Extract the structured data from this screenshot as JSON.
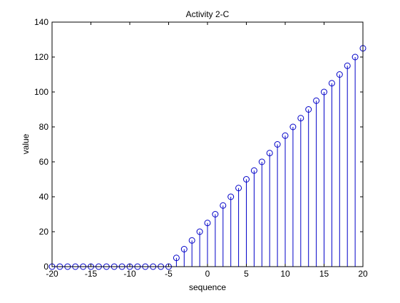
{
  "chart_data": {
    "type": "stem",
    "title": "Activity 2-C",
    "xlabel": "sequence",
    "ylabel": "value",
    "xlim": [
      -20,
      20
    ],
    "ylim": [
      0,
      140
    ],
    "xticks": [
      -20,
      -15,
      -10,
      -5,
      0,
      5,
      10,
      15,
      20
    ],
    "yticks": [
      0,
      20,
      40,
      60,
      80,
      100,
      120,
      140
    ],
    "grid": false,
    "marker": "circle",
    "colors": {
      "series": "#0000c8",
      "axes": "#000000",
      "background": "#ffffff"
    },
    "x": [
      -20,
      -19,
      -18,
      -17,
      -16,
      -15,
      -14,
      -13,
      -12,
      -11,
      -10,
      -9,
      -8,
      -7,
      -6,
      -5,
      -4,
      -3,
      -2,
      -1,
      0,
      1,
      2,
      3,
      4,
      5,
      6,
      7,
      8,
      9,
      10,
      11,
      12,
      13,
      14,
      15,
      16,
      17,
      18,
      19,
      20
    ],
    "values": [
      0,
      0,
      0,
      0,
      0,
      0,
      0,
      0,
      0,
      0,
      0,
      0,
      0,
      0,
      0,
      0,
      5,
      10,
      15,
      20,
      25,
      30,
      35,
      40,
      45,
      50,
      55,
      60,
      65,
      70,
      75,
      80,
      85,
      90,
      95,
      100,
      105,
      110,
      115,
      120,
      125
    ]
  }
}
